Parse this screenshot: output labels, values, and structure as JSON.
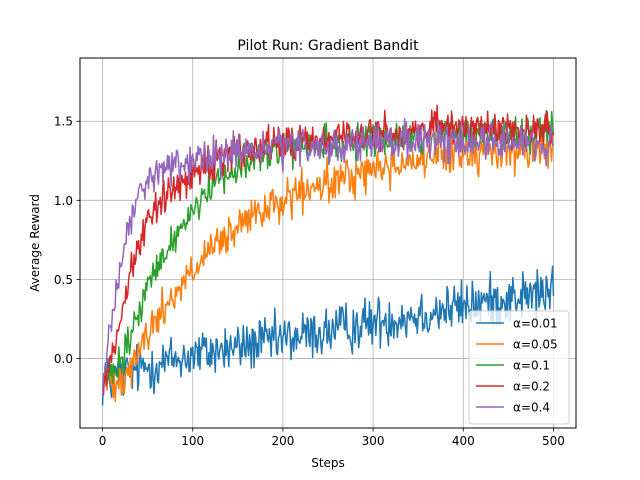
{
  "chart_data": {
    "type": "line",
    "title": "Pilot Run: Gradient Bandit",
    "xlabel": "Steps",
    "ylabel": "Average Reward",
    "xlim": [
      -25,
      525
    ],
    "ylim": [
      -0.44,
      1.9
    ],
    "xticks": [
      0,
      100,
      200,
      300,
      400,
      500
    ],
    "yticks": [
      0.0,
      0.5,
      1.0,
      1.5
    ],
    "xtick_labels": [
      "0",
      "100",
      "200",
      "300",
      "400",
      "500"
    ],
    "ytick_labels": [
      "0.0",
      "0.5",
      "1.0",
      "1.5"
    ],
    "grid": true,
    "legend_position": "lower-right",
    "x_range": [
      0,
      500
    ],
    "series": [
      {
        "name": "α=0.01",
        "color": "#1f77b4",
        "noise": 0.14,
        "values": [
          [
            0,
            -0.15
          ],
          [
            50,
            -0.05
          ],
          [
            100,
            0.02
          ],
          [
            150,
            0.07
          ],
          [
            200,
            0.12
          ],
          [
            250,
            0.17
          ],
          [
            300,
            0.23
          ],
          [
            350,
            0.28
          ],
          [
            400,
            0.33
          ],
          [
            450,
            0.38
          ],
          [
            500,
            0.42
          ]
        ]
      },
      {
        "name": "α=0.05",
        "color": "#ff7f0e",
        "noise": 0.11,
        "values": [
          [
            0,
            -0.15
          ],
          [
            25,
            -0.1
          ],
          [
            50,
            0.15
          ],
          [
            75,
            0.38
          ],
          [
            100,
            0.55
          ],
          [
            125,
            0.7
          ],
          [
            150,
            0.82
          ],
          [
            175,
            0.92
          ],
          [
            200,
            1.0
          ],
          [
            250,
            1.1
          ],
          [
            300,
            1.2
          ],
          [
            350,
            1.26
          ],
          [
            400,
            1.3
          ],
          [
            450,
            1.32
          ],
          [
            500,
            1.33
          ]
        ]
      },
      {
        "name": "α=0.1",
        "color": "#2ca02c",
        "noise": 0.1,
        "values": [
          [
            0,
            -0.15
          ],
          [
            20,
            -0.05
          ],
          [
            50,
            0.45
          ],
          [
            75,
            0.72
          ],
          [
            100,
            0.95
          ],
          [
            125,
            1.12
          ],
          [
            150,
            1.22
          ],
          [
            175,
            1.28
          ],
          [
            200,
            1.32
          ],
          [
            300,
            1.38
          ],
          [
            400,
            1.42
          ],
          [
            500,
            1.43
          ]
        ]
      },
      {
        "name": "α=0.2",
        "color": "#d62728",
        "noise": 0.1,
        "values": [
          [
            0,
            -0.15
          ],
          [
            15,
            0.1
          ],
          [
            30,
            0.55
          ],
          [
            50,
            0.88
          ],
          [
            75,
            1.05
          ],
          [
            100,
            1.18
          ],
          [
            125,
            1.27
          ],
          [
            150,
            1.32
          ],
          [
            200,
            1.36
          ],
          [
            300,
            1.42
          ],
          [
            400,
            1.46
          ],
          [
            500,
            1.44
          ]
        ]
      },
      {
        "name": "α=0.4",
        "color": "#9467bd",
        "noise": 0.1,
        "values": [
          [
            0,
            -0.15
          ],
          [
            10,
            0.2
          ],
          [
            25,
            0.72
          ],
          [
            40,
            1.05
          ],
          [
            60,
            1.18
          ],
          [
            100,
            1.25
          ],
          [
            150,
            1.3
          ],
          [
            200,
            1.33
          ],
          [
            300,
            1.36
          ],
          [
            400,
            1.38
          ],
          [
            500,
            1.36
          ]
        ]
      }
    ]
  }
}
